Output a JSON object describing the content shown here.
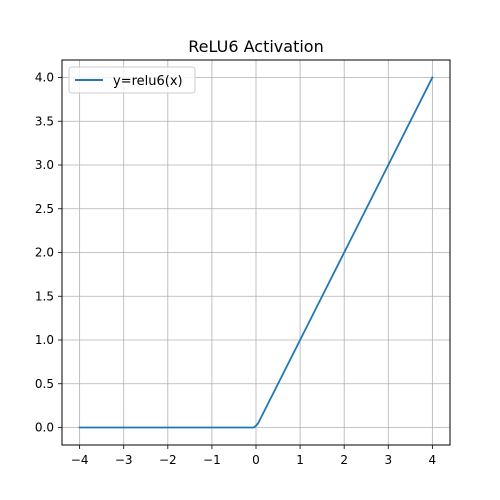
{
  "chart_data": {
    "type": "line",
    "title": "ReLU6 Activation",
    "xlabel": "",
    "ylabel": "",
    "xlim": [
      -4.4,
      4.4
    ],
    "ylim": [
      -0.2,
      4.2
    ],
    "grid": true,
    "legend": {
      "placement": "top-left"
    },
    "x_ticks": [
      -4,
      -3,
      -2,
      -1,
      0,
      1,
      2,
      3,
      4
    ],
    "x_tick_labels": [
      "−4",
      "−3",
      "−2",
      "−1",
      "0",
      "1",
      "2",
      "3",
      "4"
    ],
    "y_ticks": [
      0,
      0.5,
      1,
      1.5,
      2,
      2.5,
      3,
      3.5,
      4
    ],
    "y_tick_labels": [
      "0.0",
      "0.5",
      "1.0",
      "1.5",
      "2.0",
      "2.5",
      "3.0",
      "3.5",
      "4.0"
    ],
    "series": [
      {
        "name": "y=relu6(x)",
        "color": "#1f77b4",
        "x": [
          -4,
          -3,
          -2,
          -1,
          -0.05,
          0,
          0.05,
          1,
          2,
          3,
          4
        ],
        "y": [
          0,
          0,
          0,
          0,
          0,
          0.02,
          0.05,
          1,
          2,
          3,
          4
        ]
      }
    ]
  }
}
